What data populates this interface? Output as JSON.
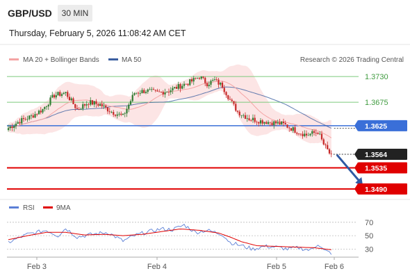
{
  "header": {
    "pair": "GBP/USD",
    "timeframe": "30 MIN",
    "timestamp": "Thursday, February 5, 2026 11:08:42 AM CET"
  },
  "credit": "Research © 2026 Trading Central",
  "legend": {
    "bollinger": {
      "label": "MA 20 + Bollinger Bands",
      "color": "#f4a4a4"
    },
    "ma50": {
      "label": "MA 50",
      "color": "#3b5fa0"
    }
  },
  "rsi_legend": {
    "rsi": {
      "label": "RSI",
      "color": "#5b7fd6"
    },
    "ma9": {
      "label": "9MA",
      "color": "#e00000"
    }
  },
  "colors": {
    "up": "#2e7d32",
    "down": "#c62828",
    "resistance": "#7cc97c",
    "pivot": "#3a6fd8",
    "support": "#e00000",
    "current": "#333333"
  },
  "chart_data": [
    {
      "type": "candlestick",
      "title": "",
      "x_ticks": [
        "Feb 3",
        "Feb 4",
        "Feb 5",
        "Feb 6"
      ],
      "ylim": [
        1.3475,
        1.3745
      ],
      "levels": [
        {
          "value": 1.373,
          "label": "1.3730",
          "kind": "resistance"
        },
        {
          "value": 1.3675,
          "label": "1.3675",
          "kind": "resistance"
        },
        {
          "value": 1.3625,
          "label": "1.3625",
          "kind": "pivot"
        },
        {
          "value": 1.3564,
          "label": "1.3564",
          "kind": "current"
        },
        {
          "value": 1.3535,
          "label": "1.3535",
          "kind": "support"
        },
        {
          "value": 1.349,
          "label": "1.3490",
          "kind": "support"
        }
      ],
      "anchors": [
        [
          0,
          1.362
        ],
        [
          6,
          1.3635
        ],
        [
          12,
          1.3645
        ],
        [
          18,
          1.366
        ],
        [
          24,
          1.369
        ],
        [
          30,
          1.3695
        ],
        [
          36,
          1.366
        ],
        [
          42,
          1.3675
        ],
        [
          48,
          1.367
        ],
        [
          54,
          1.3655
        ],
        [
          60,
          1.3645
        ],
        [
          66,
          1.3695
        ],
        [
          72,
          1.37
        ],
        [
          78,
          1.3695
        ],
        [
          84,
          1.37
        ],
        [
          90,
          1.371
        ],
        [
          96,
          1.372
        ],
        [
          100,
          1.373
        ],
        [
          104,
          1.3715
        ],
        [
          108,
          1.3722
        ],
        [
          112,
          1.371
        ],
        [
          116,
          1.368
        ],
        [
          120,
          1.3655
        ],
        [
          126,
          1.364
        ],
        [
          132,
          1.3635
        ],
        [
          138,
          1.3632
        ],
        [
          144,
          1.3628
        ],
        [
          150,
          1.3615
        ],
        [
          156,
          1.3605
        ],
        [
          162,
          1.3612
        ],
        [
          165,
          1.3585
        ],
        [
          169,
          1.356
        ]
      ],
      "forecast_arrow": {
        "from": [
          169,
          1.356
        ],
        "to": [
          183,
          1.349
        ]
      }
    },
    {
      "type": "line",
      "title": "",
      "y_ticks": [
        70,
        50,
        30
      ],
      "ylim": [
        20,
        75
      ],
      "series": [
        {
          "name": "RSI",
          "anchors": [
            [
              0,
              40
            ],
            [
              10,
              52
            ],
            [
              20,
              58
            ],
            [
              26,
              50
            ],
            [
              30,
              61
            ],
            [
              36,
              48
            ],
            [
              44,
              52
            ],
            [
              52,
              55
            ],
            [
              60,
              42
            ],
            [
              66,
              50
            ],
            [
              72,
              55
            ],
            [
              80,
              60
            ],
            [
              86,
              59
            ],
            [
              92,
              66
            ],
            [
              98,
              55
            ],
            [
              104,
              58
            ],
            [
              112,
              52
            ],
            [
              116,
              40
            ],
            [
              122,
              35
            ],
            [
              128,
              30
            ],
            [
              134,
              34
            ],
            [
              140,
              33
            ],
            [
              146,
              30
            ],
            [
              152,
              32
            ],
            [
              158,
              28
            ],
            [
              162,
              38
            ],
            [
              165,
              28
            ],
            [
              169,
              24
            ]
          ]
        },
        {
          "name": "9MA",
          "anchors": [
            [
              0,
              44
            ],
            [
              10,
              50
            ],
            [
              20,
              55
            ],
            [
              30,
              55
            ],
            [
              40,
              51
            ],
            [
              50,
              52
            ],
            [
              60,
              50
            ],
            [
              70,
              52
            ],
            [
              80,
              56
            ],
            [
              90,
              60
            ],
            [
              100,
              58
            ],
            [
              110,
              54
            ],
            [
              116,
              48
            ],
            [
              122,
              41
            ],
            [
              130,
              35
            ],
            [
              140,
              34
            ],
            [
              150,
              33
            ],
            [
              160,
              32
            ],
            [
              169,
              29
            ]
          ]
        }
      ]
    }
  ]
}
